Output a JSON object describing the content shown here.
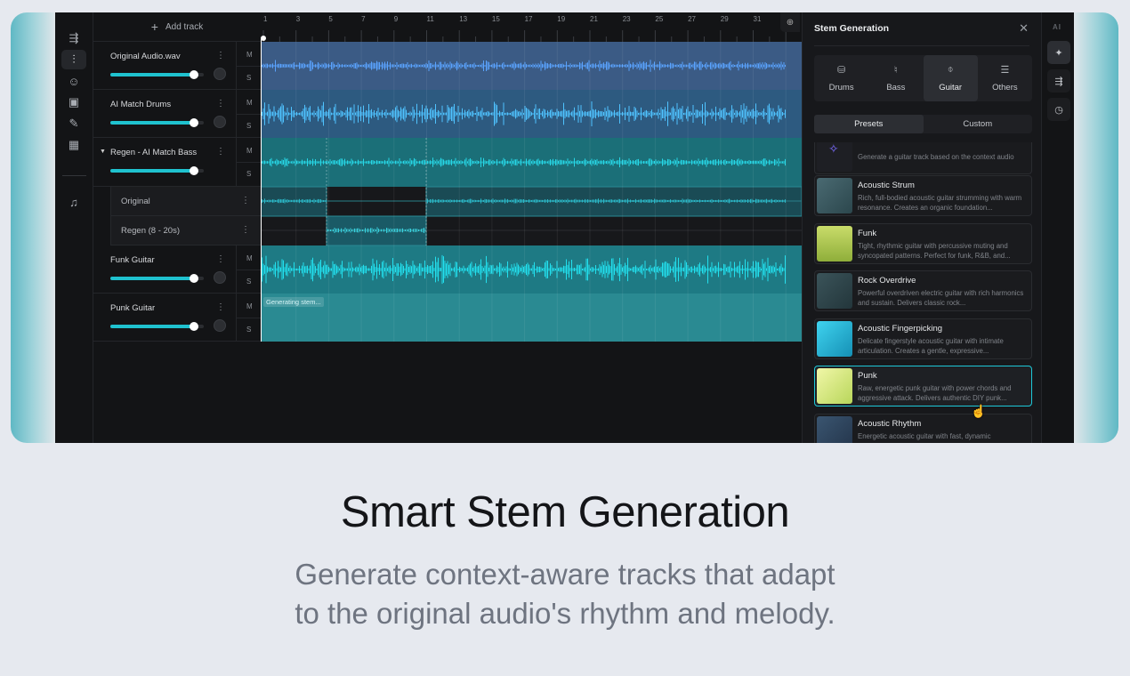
{
  "rail": {
    "icons": [
      "share-flow-icon",
      "waveform-icon",
      "voice-icon",
      "speaker-icon",
      "pencil-music-icon",
      "grid-icon",
      "playlist-music-icon"
    ],
    "active": 1
  },
  "tracks_header": {
    "add_track": "Add track"
  },
  "tracks": [
    {
      "name": "Original Audio.wav",
      "volume": 0.9,
      "mute": "M",
      "solo": "S",
      "color": "#3b5b85",
      "wave": "#5aa3ff"
    },
    {
      "name": "AI Match Drums",
      "volume": 0.9,
      "mute": "M",
      "solo": "S",
      "color": "#2d5a80",
      "wave": "#4fc3ff"
    },
    {
      "name": "Regen - AI Match Bass",
      "volume": 0.9,
      "mute": "M",
      "solo": "S",
      "color": "#1b6f78",
      "wave": "#27d7e6",
      "expanded": true,
      "sub": [
        {
          "name": "Original"
        },
        {
          "name": "Regen (8 - 20s)"
        }
      ]
    },
    {
      "name": "Funk Guitar",
      "volume": 0.9,
      "mute": "M",
      "solo": "S",
      "color": "#1e7a84",
      "wave": "#22e0ee"
    },
    {
      "name": "Punk Guitar",
      "volume": 0.9,
      "mute": "M",
      "solo": "S",
      "color": "#2a8a92",
      "status": "Generating stem..."
    }
  ],
  "ruler": {
    "ticks": [
      "1",
      "3",
      "5",
      "7",
      "9",
      "11",
      "13",
      "15",
      "17",
      "19",
      "21",
      "23",
      "25",
      "27",
      "29",
      "31"
    ]
  },
  "panel": {
    "title": "Stem Generation",
    "categories": [
      {
        "label": "Drums",
        "icon": "drum-icon"
      },
      {
        "label": "Bass",
        "icon": "bass-icon"
      },
      {
        "label": "Guitar",
        "icon": "guitar-icon"
      },
      {
        "label": "Others",
        "icon": "others-icon"
      }
    ],
    "active_category": "Guitar",
    "tabs": [
      "Presets",
      "Custom"
    ],
    "active_tab": "Presets",
    "presets": [
      {
        "title": "",
        "desc": "Generate a guitar track based on the context audio"
      },
      {
        "title": "Acoustic Strum",
        "desc": "Rich, full-bodied acoustic guitar strumming with warm resonance. Creates an organic foundation..."
      },
      {
        "title": "Funk",
        "desc": "Tight, rhythmic guitar with percussive muting and syncopated patterns. Perfect for funk, R&B, and..."
      },
      {
        "title": "Rock Overdrive",
        "desc": "Powerful overdriven electric guitar with rich harmonics and sustain. Delivers classic rock..."
      },
      {
        "title": "Acoustic Fingerpicking",
        "desc": "Delicate fingerstyle acoustic guitar with intimate articulation. Creates a gentle, expressive..."
      },
      {
        "title": "Punk",
        "desc": "Raw, energetic punk guitar with power chords and aggressive attack. Delivers authentic DIY punk..."
      },
      {
        "title": "Acoustic Rhythm",
        "desc": "Energetic acoustic guitar with fast, dynamic"
      }
    ],
    "selected_preset": "Punk"
  },
  "right_rail": {
    "label": "AI",
    "icons": [
      "sparkle-icon",
      "share-flow-icon",
      "timer-icon"
    ]
  },
  "hero": {
    "title": "Smart Stem Generation",
    "subtitle_line1": "Generate context-aware tracks that adapt",
    "subtitle_line2": "to the original audio's rhythm and melody."
  },
  "colors": {
    "accent": "#1ec8d8",
    "background": "#e6e9ef",
    "app": "#131416"
  }
}
